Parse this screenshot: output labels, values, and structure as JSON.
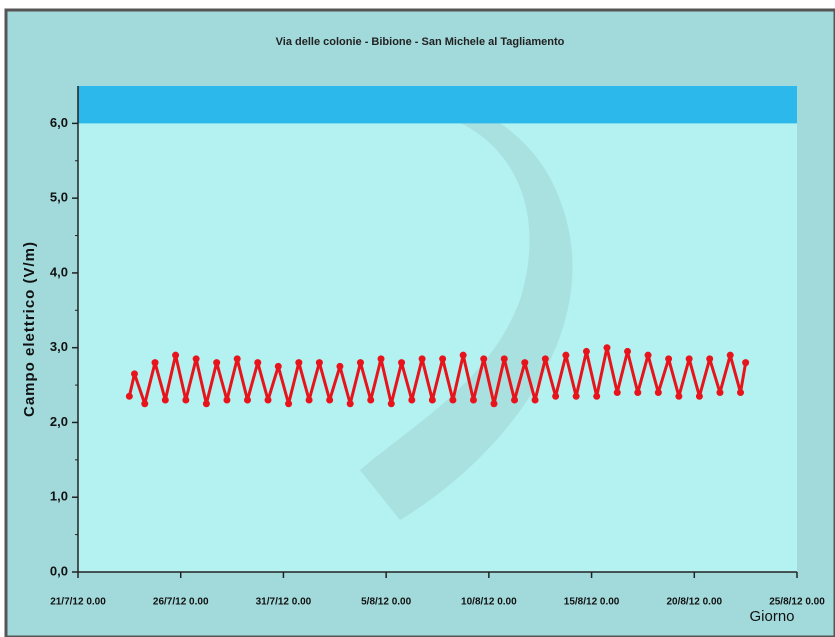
{
  "chart_data": {
    "type": "line",
    "title": "Via delle colonie - Bibione - San Michele al Tagliamento",
    "ylabel": "Campo elettrico (V/m)",
    "xlabel": "Giorno",
    "xlim": [
      "21/7/12 0.00",
      "25/8/12 0.00"
    ],
    "xticks": [
      "21/7/12 0.00",
      "26/7/12 0.00",
      "31/7/12 0.00",
      "5/8/12 0.00",
      "10/8/12 0.00",
      "15/8/12 0.00",
      "20/8/12 0.00",
      "25/8/12 0.00"
    ],
    "ylim": [
      0,
      6.5
    ],
    "yticks": [
      {
        "value": 0,
        "label": "0,0"
      },
      {
        "value": 1,
        "label": "1,0"
      },
      {
        "value": 2,
        "label": "2,0"
      },
      {
        "value": 3,
        "label": "3,0"
      },
      {
        "value": 4,
        "label": "4,0"
      },
      {
        "value": 5,
        "label": "5,0"
      },
      {
        "value": 6,
        "label": "6,0"
      }
    ],
    "band": {
      "range": [
        6,
        6.5
      ],
      "color": "#2db8ec"
    },
    "series": [
      {
        "color": "#e8141b",
        "x": [
          "23/7/12 12.00",
          "23/7/12 18.00",
          "24/7/12 6.00",
          "24/7/12 18.00",
          "25/7/12 6.00",
          "25/7/12 18.00",
          "26/7/12 6.00",
          "26/7/12 18.00",
          "27/7/12 6.00",
          "27/7/12 18.00",
          "28/7/12 6.00",
          "28/7/12 18.00",
          "29/7/12 6.00",
          "29/7/12 18.00",
          "30/7/12 6.00",
          "30/7/12 18.00",
          "31/7/12 6.00",
          "31/7/12 18.00",
          "1/8/12 6.00",
          "1/8/12 18.00",
          "2/8/12 6.00",
          "2/8/12 18.00",
          "3/8/12 6.00",
          "3/8/12 18.00",
          "4/8/12 6.00",
          "4/8/12 18.00",
          "5/8/12 6.00",
          "5/8/12 18.00",
          "6/8/12 6.00",
          "6/8/12 18.00",
          "7/8/12 6.00",
          "7/8/12 18.00",
          "8/8/12 6.00",
          "8/8/12 18.00",
          "9/8/12 6.00",
          "9/8/12 18.00",
          "10/8/12 6.00",
          "10/8/12 18.00",
          "11/8/12 6.00",
          "11/8/12 18.00",
          "12/8/12 6.00",
          "12/8/12 18.00",
          "13/8/12 6.00",
          "13/8/12 18.00",
          "14/8/12 6.00",
          "14/8/12 18.00",
          "15/8/12 6.00",
          "15/8/12 18.00",
          "16/8/12 6.00",
          "16/8/12 18.00",
          "17/8/12 6.00",
          "17/8/12 18.00",
          "18/8/12 6.00",
          "18/8/12 18.00",
          "19/8/12 6.00",
          "19/8/12 18.00",
          "20/8/12 6.00",
          "20/8/12 18.00",
          "21/8/12 6.00",
          "21/8/12 18.00",
          "22/8/12 6.00",
          "22/8/12 12.00"
        ],
        "values": [
          2.35,
          2.65,
          2.25,
          2.8,
          2.3,
          2.9,
          2.3,
          2.85,
          2.25,
          2.8,
          2.3,
          2.85,
          2.3,
          2.8,
          2.3,
          2.75,
          2.25,
          2.8,
          2.3,
          2.8,
          2.3,
          2.75,
          2.25,
          2.8,
          2.3,
          2.85,
          2.25,
          2.8,
          2.3,
          2.85,
          2.3,
          2.85,
          2.3,
          2.9,
          2.3,
          2.85,
          2.25,
          2.85,
          2.3,
          2.8,
          2.3,
          2.85,
          2.35,
          2.9,
          2.35,
          2.95,
          2.35,
          3.0,
          2.4,
          2.95,
          2.4,
          2.9,
          2.4,
          2.85,
          2.35,
          2.85,
          2.35,
          2.85,
          2.4,
          2.9,
          2.4,
          2.8
        ]
      }
    ]
  }
}
